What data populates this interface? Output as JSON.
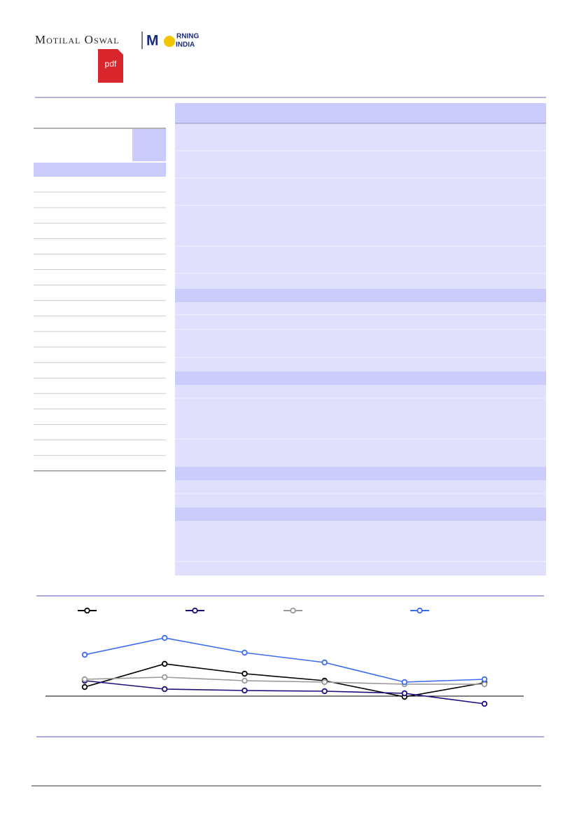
{
  "header": {
    "brand": "Motilal Oswal",
    "logo_m": "M",
    "logo_rning": "RNING",
    "logo_india": "INDIA",
    "pdf_icon": "pdf"
  },
  "chart_data": {
    "type": "line",
    "categories": [
      null,
      null,
      null,
      null,
      null,
      null
    ],
    "ylim": [
      -4.7,
      11.3
    ],
    "series": [
      {
        "color": "#000000",
        "values": [
          1.3,
          4.6,
          3.2,
          2.2,
          -0.1,
          1.9
        ]
      },
      {
        "color": "#1a0f7a",
        "values": [
          2.2,
          1.0,
          0.8,
          0.7,
          0.4,
          -1.1
        ]
      },
      {
        "color": "#999999",
        "values": [
          2.4,
          2.7,
          2.2,
          2.0,
          1.7,
          1.7
        ]
      },
      {
        "color": "#3b6cf0",
        "values": [
          5.9,
          8.3,
          6.2,
          4.8,
          2.0,
          2.4
        ]
      }
    ]
  }
}
